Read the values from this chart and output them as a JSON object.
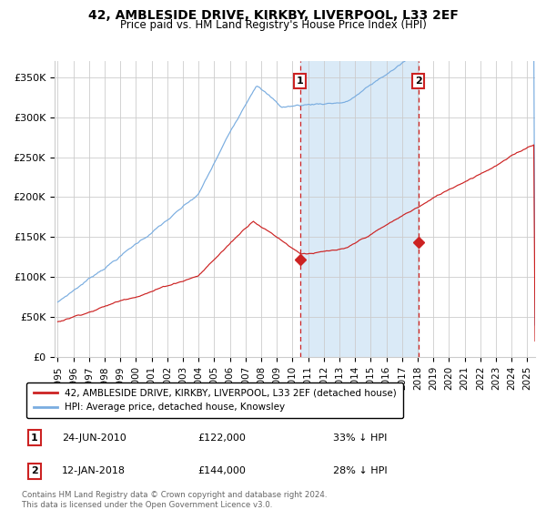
{
  "title": "42, AMBLESIDE DRIVE, KIRKBY, LIVERPOOL, L33 2EF",
  "subtitle": "Price paid vs. HM Land Registry's House Price Index (HPI)",
  "xlim_start": 1994.8,
  "xlim_end": 2025.5,
  "ylim": [
    0,
    370000
  ],
  "yticks": [
    0,
    50000,
    100000,
    150000,
    200000,
    250000,
    300000,
    350000
  ],
  "ytick_labels": [
    "£0",
    "£50K",
    "£100K",
    "£150K",
    "£200K",
    "£250K",
    "£300K",
    "£350K"
  ],
  "hpi_color": "#7aade0",
  "price_color": "#cc2222",
  "shade_color": "#daeaf7",
  "vline_color": "#cc2222",
  "dot_color": "#cc2222",
  "grid_color": "#cccccc",
  "background_color": "#ffffff",
  "annotation1": {
    "label": "1",
    "date_x": 2010.48,
    "price": 122000,
    "date_str": "24-JUN-2010",
    "price_str": "£122,000",
    "hpi_str": "33% ↓ HPI"
  },
  "annotation2": {
    "label": "2",
    "date_x": 2018.04,
    "price": 144000,
    "date_str": "12-JAN-2018",
    "price_str": "£144,000",
    "hpi_str": "28% ↓ HPI"
  },
  "legend_line1": "42, AMBLESIDE DRIVE, KIRKBY, LIVERPOOL, L33 2EF (detached house)",
  "legend_line2": "HPI: Average price, detached house, Knowsley",
  "footnote": "Contains HM Land Registry data © Crown copyright and database right 2024.\nThis data is licensed under the Open Government Licence v3.0.",
  "xticks": [
    1995,
    1996,
    1997,
    1998,
    1999,
    2000,
    2001,
    2002,
    2003,
    2004,
    2005,
    2006,
    2007,
    2008,
    2009,
    2010,
    2011,
    2012,
    2013,
    2014,
    2015,
    2016,
    2017,
    2018,
    2019,
    2020,
    2021,
    2022,
    2023,
    2024,
    2025
  ]
}
